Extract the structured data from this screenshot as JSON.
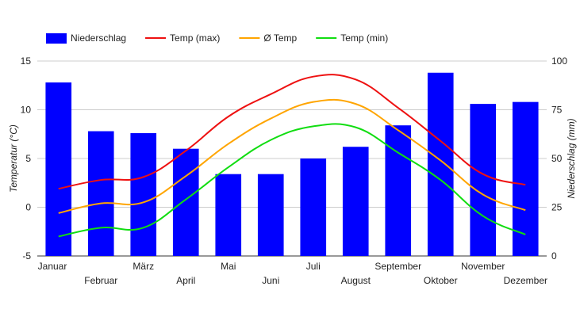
{
  "chart_data": {
    "type": "bar",
    "categories": [
      "Januar",
      "Februar",
      "März",
      "April",
      "Mai",
      "Juni",
      "Juli",
      "August",
      "September",
      "Oktober",
      "November",
      "Dezember"
    ],
    "series": [
      {
        "name": "Niederschlag",
        "type": "bar",
        "axis": "right",
        "color": "#0000ff",
        "values": [
          89,
          64,
          63,
          55,
          42,
          42,
          50,
          56,
          67,
          94,
          78,
          79
        ]
      },
      {
        "name": "Temp (max)",
        "type": "line",
        "axis": "left",
        "color": "#ee1111",
        "values": [
          1.9,
          2.8,
          3.1,
          5.8,
          9.3,
          11.6,
          13.4,
          13.1,
          10.2,
          6.8,
          3.4,
          2.3
        ]
      },
      {
        "name": "Ø Temp",
        "type": "line",
        "axis": "left",
        "color": "#ffa500",
        "values": [
          -0.6,
          0.4,
          0.5,
          3.2,
          6.5,
          9.1,
          10.8,
          10.6,
          7.9,
          4.8,
          1.3,
          -0.3
        ]
      },
      {
        "name": "Temp (min)",
        "type": "line",
        "axis": "left",
        "color": "#11dd11",
        "values": [
          -3.0,
          -2.1,
          -2.1,
          0.8,
          4.1,
          6.9,
          8.3,
          8.2,
          5.6,
          2.8,
          -0.9,
          -2.8
        ]
      }
    ],
    "ylabel_left": "Temperatur (°C)",
    "ylabel_right": "Niederschlag (mm)",
    "ylim_left": [
      -5,
      15
    ],
    "ylim_right": [
      0,
      100
    ],
    "yticks_left": [
      "-5",
      "0",
      "5",
      "10",
      "15"
    ],
    "yticks_right": [
      "0",
      "25",
      "50",
      "75",
      "100"
    ],
    "grid": true,
    "legend": "top-left"
  }
}
